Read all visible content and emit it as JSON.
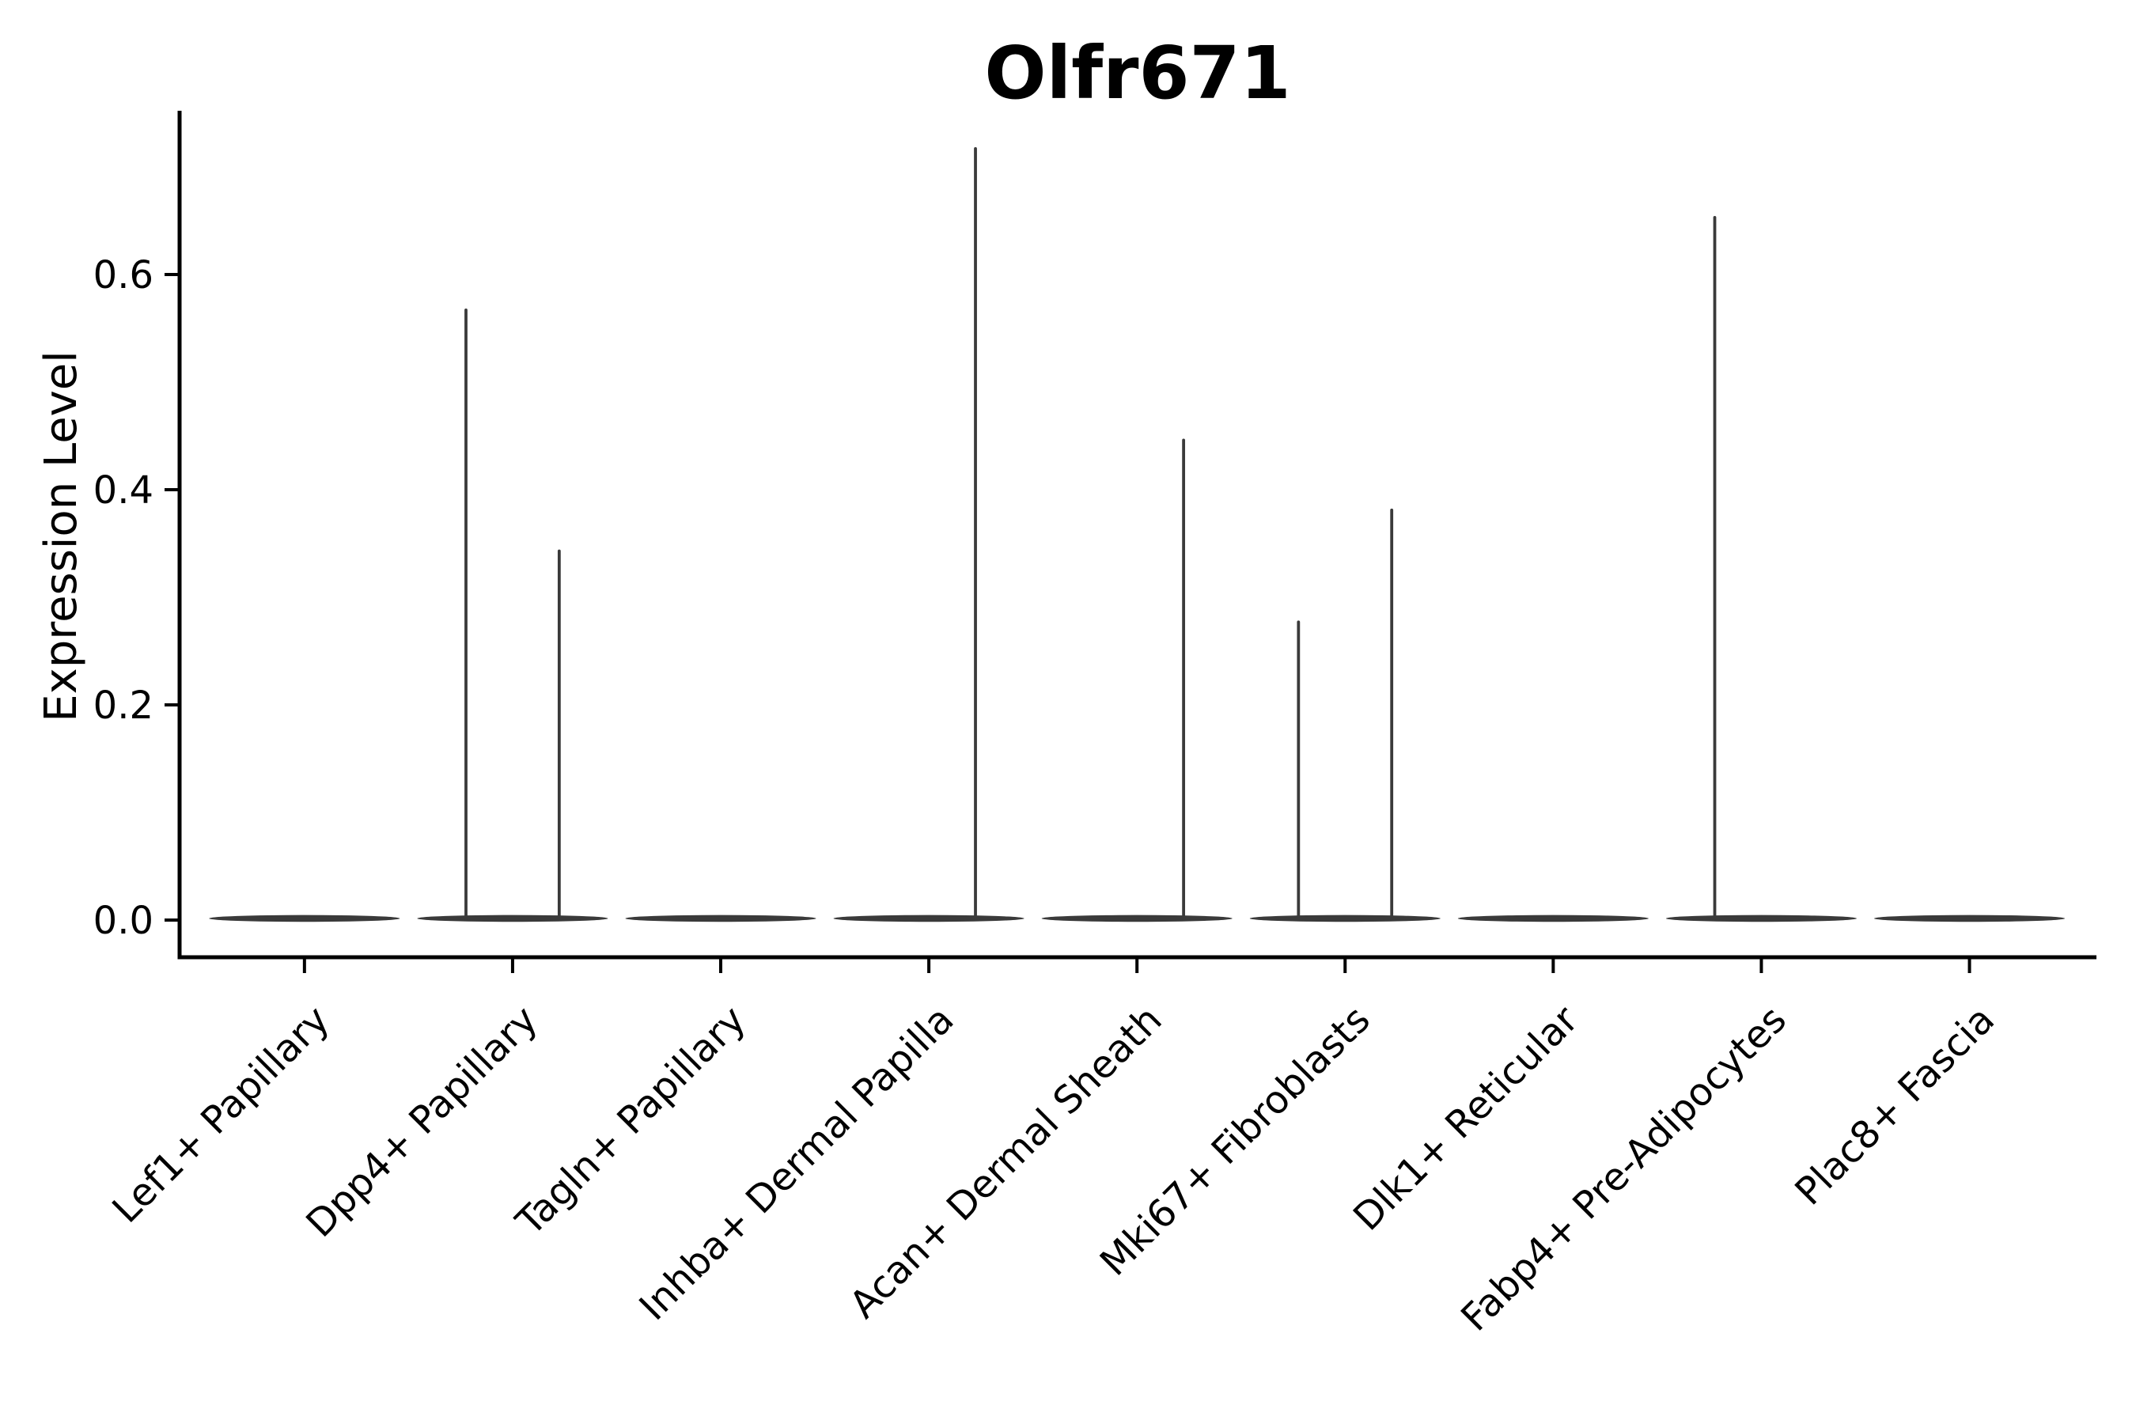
{
  "chart_data": {
    "type": "violin",
    "title": "Olfr671",
    "xlabel": "",
    "ylabel": "Expression Level",
    "grid": false,
    "legend": null,
    "background_color": "#ffffff",
    "axis_color": "#000000",
    "violin_color": "#3a3a3a",
    "ylim": [
      -0.0346,
      0.7522
    ],
    "xlim": [
      -0.6,
      8.61
    ],
    "yticks": [
      {
        "value": 0.0,
        "label": "0.0"
      },
      {
        "value": 0.2,
        "label": "0.2"
      },
      {
        "value": 0.4,
        "label": "0.4"
      },
      {
        "value": 0.6,
        "label": "0.6"
      }
    ],
    "violin_halfwidth": 0.458,
    "categories": [
      {
        "label": "Lef1+ Papillary",
        "baseline_value": 0.0,
        "spikes": []
      },
      {
        "label": "Dpp4+ Papillary",
        "baseline_value": 0.0,
        "spikes": [
          {
            "offset": -0.224,
            "max": 0.567
          },
          {
            "offset": 0.224,
            "max": 0.343
          }
        ]
      },
      {
        "label": "Tagln+ Papillary",
        "baseline_value": 0.0,
        "spikes": []
      },
      {
        "label": "Inhba+ Dermal Papilla",
        "baseline_value": 0.0,
        "spikes": [
          {
            "offset": 0.224,
            "max": 0.717
          }
        ]
      },
      {
        "label": "Acan+ Dermal Sheath",
        "baseline_value": 0.0,
        "spikes": [
          {
            "offset": 0.224,
            "max": 0.446
          }
        ]
      },
      {
        "label": "Mki67+ Fibroblasts",
        "baseline_value": 0.0,
        "spikes": [
          {
            "offset": -0.224,
            "max": 0.277
          },
          {
            "offset": 0.224,
            "max": 0.381
          }
        ]
      },
      {
        "label": "Dlk1+ Reticular",
        "baseline_value": 0.0,
        "spikes": []
      },
      {
        "label": "Fabp4+ Pre-Adipocytes",
        "baseline_value": 0.0,
        "spikes": [
          {
            "offset": -0.224,
            "max": 0.653
          }
        ]
      },
      {
        "label": "Plac8+ Fascia",
        "baseline_value": 0.0,
        "spikes": []
      }
    ]
  }
}
